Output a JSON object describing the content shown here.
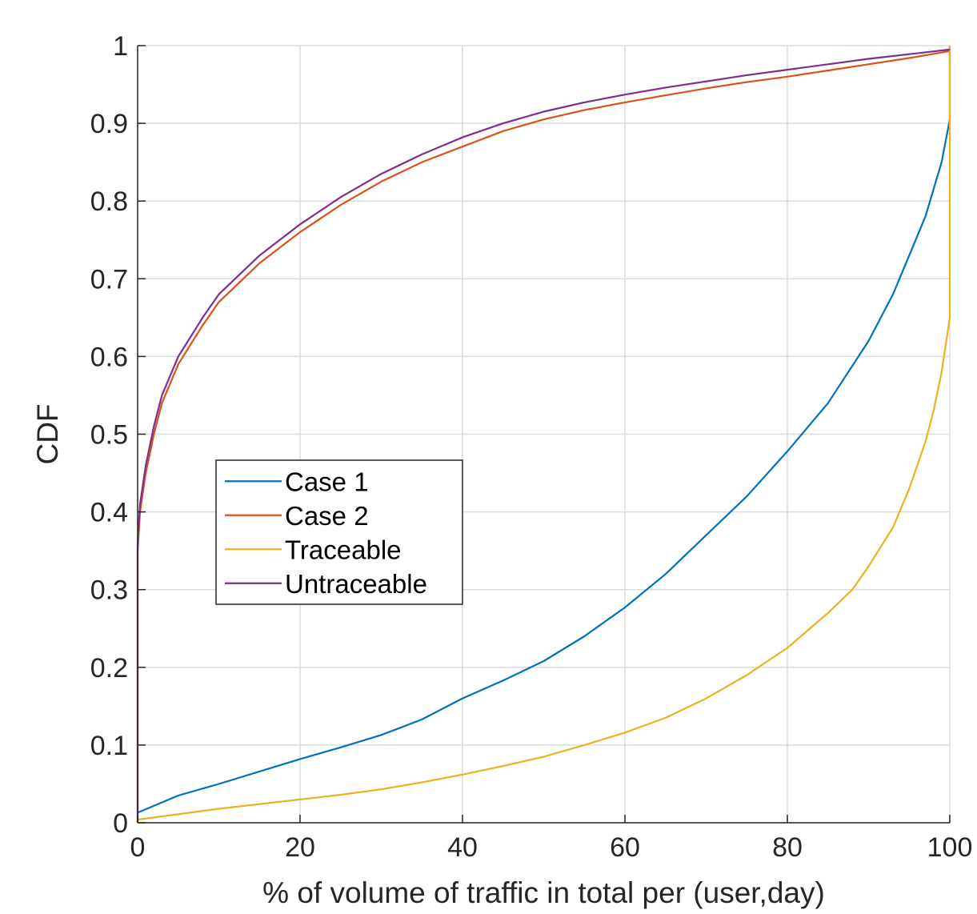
{
  "chart_data": {
    "type": "line",
    "title": "",
    "xlabel": "% of volume of traffic in total per (user,day)",
    "ylabel": "CDF",
    "xlim": [
      0,
      100
    ],
    "ylim": [
      0,
      1
    ],
    "xticks": [
      0,
      20,
      40,
      60,
      80,
      100
    ],
    "yticks": [
      0,
      0.1,
      0.2,
      0.3,
      0.4,
      0.5,
      0.6,
      0.7,
      0.8,
      0.9,
      1
    ],
    "xtick_labels": [
      "0",
      "20",
      "40",
      "60",
      "80",
      "100"
    ],
    "ytick_labels": [
      "0",
      "0.1",
      "0.2",
      "0.3",
      "0.4",
      "0.5",
      "0.6",
      "0.7",
      "0.8",
      "0.9",
      "1"
    ],
    "grid": true,
    "legend_position": "center-left",
    "series": [
      {
        "name": "Case 1",
        "color": "#0072BD",
        "points": [
          [
            0,
            0.013
          ],
          [
            5,
            0.035
          ],
          [
            10,
            0.05
          ],
          [
            15,
            0.066
          ],
          [
            20,
            0.082
          ],
          [
            25,
            0.097
          ],
          [
            30,
            0.113
          ],
          [
            35,
            0.133
          ],
          [
            40,
            0.16
          ],
          [
            45,
            0.183
          ],
          [
            50,
            0.208
          ],
          [
            55,
            0.24
          ],
          [
            60,
            0.277
          ],
          [
            65,
            0.32
          ],
          [
            70,
            0.37
          ],
          [
            75,
            0.42
          ],
          [
            80,
            0.478
          ],
          [
            85,
            0.54
          ],
          [
            90,
            0.62
          ],
          [
            93,
            0.68
          ],
          [
            95,
            0.73
          ],
          [
            97,
            0.78
          ],
          [
            99,
            0.85
          ],
          [
            100,
            0.905
          ],
          [
            100,
            1.0
          ]
        ]
      },
      {
        "name": "Case 2",
        "color": "#D95319",
        "points": [
          [
            0,
            0.0
          ],
          [
            0,
            0.35
          ],
          [
            0.3,
            0.4
          ],
          [
            1,
            0.45
          ],
          [
            2,
            0.5
          ],
          [
            3,
            0.54
          ],
          [
            5,
            0.59
          ],
          [
            8,
            0.64
          ],
          [
            10,
            0.67
          ],
          [
            15,
            0.72
          ],
          [
            20,
            0.76
          ],
          [
            25,
            0.795
          ],
          [
            30,
            0.825
          ],
          [
            35,
            0.85
          ],
          [
            40,
            0.87
          ],
          [
            45,
            0.89
          ],
          [
            50,
            0.905
          ],
          [
            55,
            0.917
          ],
          [
            60,
            0.927
          ],
          [
            65,
            0.936
          ],
          [
            70,
            0.945
          ],
          [
            75,
            0.953
          ],
          [
            80,
            0.96
          ],
          [
            85,
            0.968
          ],
          [
            90,
            0.976
          ],
          [
            95,
            0.984
          ],
          [
            100,
            0.993
          ]
        ]
      },
      {
        "name": "Traceable",
        "color": "#EDB120",
        "points": [
          [
            0,
            0.004
          ],
          [
            5,
            0.011
          ],
          [
            10,
            0.018
          ],
          [
            15,
            0.024
          ],
          [
            20,
            0.03
          ],
          [
            25,
            0.036
          ],
          [
            30,
            0.043
          ],
          [
            35,
            0.052
          ],
          [
            40,
            0.062
          ],
          [
            45,
            0.073
          ],
          [
            50,
            0.085
          ],
          [
            55,
            0.1
          ],
          [
            60,
            0.116
          ],
          [
            65,
            0.135
          ],
          [
            70,
            0.16
          ],
          [
            75,
            0.19
          ],
          [
            80,
            0.225
          ],
          [
            85,
            0.27
          ],
          [
            88,
            0.3
          ],
          [
            90,
            0.33
          ],
          [
            93,
            0.38
          ],
          [
            95,
            0.43
          ],
          [
            97,
            0.49
          ],
          [
            98,
            0.53
          ],
          [
            99,
            0.58
          ],
          [
            100,
            0.65
          ],
          [
            100,
            1.0
          ]
        ]
      },
      {
        "name": "Untraceable",
        "color": "#7E2F8E",
        "points": [
          [
            0,
            0.0
          ],
          [
            0,
            0.36
          ],
          [
            0.3,
            0.41
          ],
          [
            1,
            0.46
          ],
          [
            2,
            0.51
          ],
          [
            3,
            0.55
          ],
          [
            5,
            0.6
          ],
          [
            8,
            0.65
          ],
          [
            10,
            0.68
          ],
          [
            15,
            0.73
          ],
          [
            20,
            0.77
          ],
          [
            25,
            0.805
          ],
          [
            30,
            0.835
          ],
          [
            35,
            0.86
          ],
          [
            40,
            0.882
          ],
          [
            45,
            0.9
          ],
          [
            50,
            0.915
          ],
          [
            55,
            0.927
          ],
          [
            60,
            0.937
          ],
          [
            65,
            0.946
          ],
          [
            70,
            0.954
          ],
          [
            75,
            0.962
          ],
          [
            80,
            0.969
          ],
          [
            85,
            0.976
          ],
          [
            90,
            0.983
          ],
          [
            95,
            0.989
          ],
          [
            100,
            0.995
          ]
        ]
      }
    ]
  }
}
